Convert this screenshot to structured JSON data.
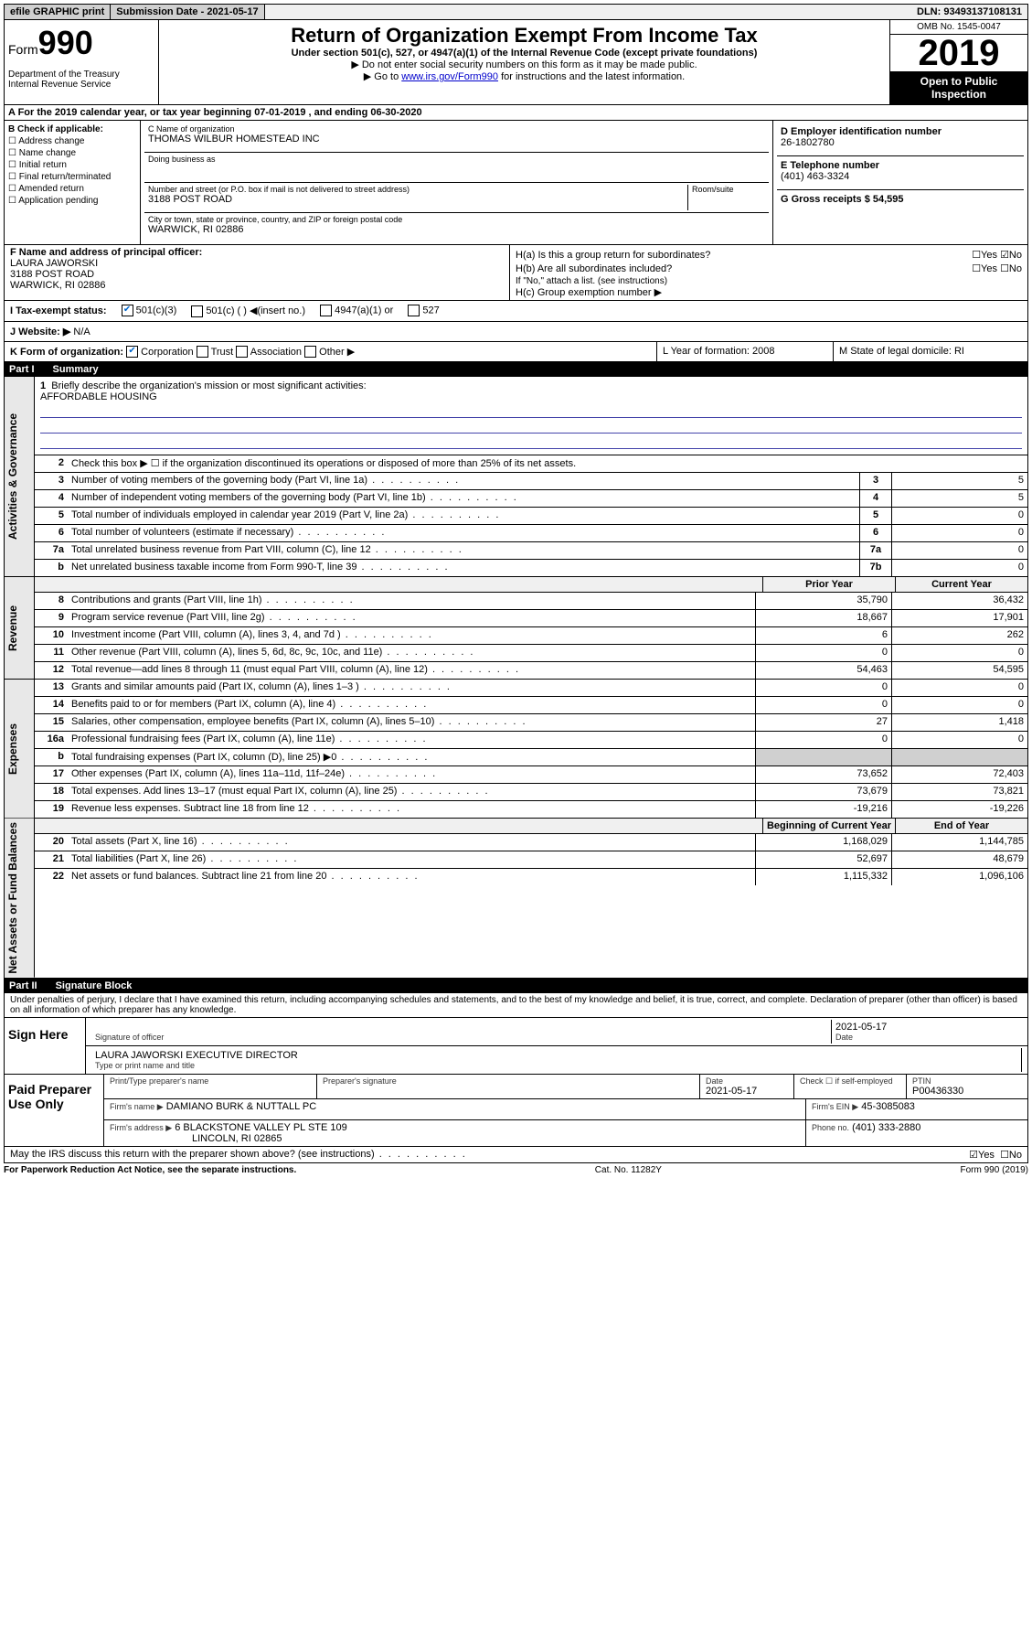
{
  "top": {
    "efile": "efile GRAPHIC print",
    "submission_label": "Submission Date - 2021-05-17",
    "dln": "DLN: 93493137108131"
  },
  "header": {
    "form_word": "Form",
    "form_num": "990",
    "dept": "Department of the Treasury\nInternal Revenue Service",
    "title": "Return of Organization Exempt From Income Tax",
    "subtitle": "Under section 501(c), 527, or 4947(a)(1) of the Internal Revenue Code (except private foundations)",
    "instr1": "▶ Do not enter social security numbers on this form as it may be made public.",
    "instr2_pre": "▶ Go to ",
    "instr2_link": "www.irs.gov/Form990",
    "instr2_post": " for instructions and the latest information.",
    "omb": "OMB No. 1545-0047",
    "year": "2019",
    "open": "Open to Public Inspection"
  },
  "periodA": "A For the 2019 calendar year, or tax year beginning 07-01-2019   , and ending 06-30-2020",
  "sectionB": {
    "label": "B Check if applicable:",
    "opts": [
      "☐ Address change",
      "☐ Name change",
      "☐ Initial return",
      "☐ Final return/terminated",
      "☐ Amended return",
      "☐ Application pending"
    ]
  },
  "sectionC": {
    "name_label": "C Name of organization",
    "name": "THOMAS WILBUR HOMESTEAD INC",
    "dba_label": "Doing business as",
    "dba": "",
    "addr_label": "Number and street (or P.O. box if mail is not delivered to street address)",
    "addr": "3188 POST ROAD",
    "room_label": "Room/suite",
    "city_label": "City or town, state or province, country, and ZIP or foreign postal code",
    "city": "WARWICK, RI  02886"
  },
  "sectionD": {
    "label": "D Employer identification number",
    "ein": "26-1802780"
  },
  "sectionE": {
    "label": "E Telephone number",
    "phone": "(401) 463-3324"
  },
  "sectionG": {
    "label": "G Gross receipts $ 54,595"
  },
  "sectionF": {
    "label": "F  Name and address of principal officer:",
    "name": "LAURA JAWORSKI",
    "addr1": "3188 POST ROAD",
    "addr2": "WARWICK, RI  02886"
  },
  "sectionH": {
    "ha_label": "H(a)  Is this a group return for subordinates?",
    "ha_yes": "☐Yes",
    "ha_no": "☑No",
    "hb_label": "H(b)  Are all subordinates included?",
    "hb_yes": "☐Yes",
    "hb_no": "☐No",
    "hb_note": "If \"No,\" attach a list. (see instructions)",
    "hc_label": "H(c)  Group exemption number ▶"
  },
  "sectionI": {
    "label": "I   Tax-exempt status:",
    "o1": "501(c)(3)",
    "o2": "501(c) (  ) ◀(insert no.)",
    "o3": "4947(a)(1) or",
    "o4": "527"
  },
  "sectionJ": {
    "label": "J   Website: ▶",
    "val": "N/A"
  },
  "sectionK": {
    "label": "K Form of organization:",
    "o1": "Corporation",
    "o2": "Trust",
    "o3": "Association",
    "o4": "Other ▶"
  },
  "sectionL": {
    "label": "L Year of formation: 2008"
  },
  "sectionM": {
    "label": "M State of legal domicile: RI"
  },
  "part1": {
    "header_num": "Part I",
    "header_title": "Summary",
    "vert_gov": "Activities & Governance",
    "vert_rev": "Revenue",
    "vert_exp": "Expenses",
    "vert_net": "Net Assets or Fund Balances",
    "line1_label": "Briefly describe the organization's mission or most significant activities:",
    "line1_val": "AFFORDABLE HOUSING",
    "line2": "Check this box ▶ ☐  if the organization discontinued its operations or disposed of more than 25% of its net assets.",
    "lines_gov": [
      {
        "n": "3",
        "d": "Number of voting members of the governing body (Part VI, line 1a)",
        "b": "3",
        "v": "5"
      },
      {
        "n": "4",
        "d": "Number of independent voting members of the governing body (Part VI, line 1b)",
        "b": "4",
        "v": "5"
      },
      {
        "n": "5",
        "d": "Total number of individuals employed in calendar year 2019 (Part V, line 2a)",
        "b": "5",
        "v": "0"
      },
      {
        "n": "6",
        "d": "Total number of volunteers (estimate if necessary)",
        "b": "6",
        "v": "0"
      },
      {
        "n": "7a",
        "d": "Total unrelated business revenue from Part VIII, column (C), line 12",
        "b": "7a",
        "v": "0"
      },
      {
        "n": "b",
        "d": "Net unrelated business taxable income from Form 990-T, line 39",
        "b": "7b",
        "v": "0"
      }
    ],
    "col_prior": "Prior Year",
    "col_current": "Current Year",
    "lines_rev": [
      {
        "n": "8",
        "d": "Contributions and grants (Part VIII, line 1h)",
        "p": "35,790",
        "c": "36,432"
      },
      {
        "n": "9",
        "d": "Program service revenue (Part VIII, line 2g)",
        "p": "18,667",
        "c": "17,901"
      },
      {
        "n": "10",
        "d": "Investment income (Part VIII, column (A), lines 3, 4, and 7d )",
        "p": "6",
        "c": "262"
      },
      {
        "n": "11",
        "d": "Other revenue (Part VIII, column (A), lines 5, 6d, 8c, 9c, 10c, and 11e)",
        "p": "0",
        "c": "0"
      },
      {
        "n": "12",
        "d": "Total revenue—add lines 8 through 11 (must equal Part VIII, column (A), line 12)",
        "p": "54,463",
        "c": "54,595"
      }
    ],
    "lines_exp": [
      {
        "n": "13",
        "d": "Grants and similar amounts paid (Part IX, column (A), lines 1–3 )",
        "p": "0",
        "c": "0"
      },
      {
        "n": "14",
        "d": "Benefits paid to or for members (Part IX, column (A), line 4)",
        "p": "0",
        "c": "0"
      },
      {
        "n": "15",
        "d": "Salaries, other compensation, employee benefits (Part IX, column (A), lines 5–10)",
        "p": "27",
        "c": "1,418"
      },
      {
        "n": "16a",
        "d": "Professional fundraising fees (Part IX, column (A), line 11e)",
        "p": "0",
        "c": "0"
      },
      {
        "n": "b",
        "d": "Total fundraising expenses (Part IX, column (D), line 25) ▶0",
        "p": "",
        "c": ""
      },
      {
        "n": "17",
        "d": "Other expenses (Part IX, column (A), lines 11a–11d, 11f–24e)",
        "p": "73,652",
        "c": "72,403"
      },
      {
        "n": "18",
        "d": "Total expenses. Add lines 13–17 (must equal Part IX, column (A), line 25)",
        "p": "73,679",
        "c": "73,821"
      },
      {
        "n": "19",
        "d": "Revenue less expenses. Subtract line 18 from line 12",
        "p": "-19,216",
        "c": "-19,226"
      }
    ],
    "col_begin": "Beginning of Current Year",
    "col_end": "End of Year",
    "lines_net": [
      {
        "n": "20",
        "d": "Total assets (Part X, line 16)",
        "p": "1,168,029",
        "c": "1,144,785"
      },
      {
        "n": "21",
        "d": "Total liabilities (Part X, line 26)",
        "p": "52,697",
        "c": "48,679"
      },
      {
        "n": "22",
        "d": "Net assets or fund balances. Subtract line 21 from line 20",
        "p": "1,115,332",
        "c": "1,096,106"
      }
    ]
  },
  "part2": {
    "header_num": "Part II",
    "header_title": "Signature Block",
    "declare": "Under penalties of perjury, I declare that I have examined this return, including accompanying schedules and statements, and to the best of my knowledge and belief, it is true, correct, and complete. Declaration of preparer (other than officer) is based on all information of which preparer has any knowledge.",
    "sign_here": "Sign Here",
    "sig_officer_label": "Signature of officer",
    "sig_date": "2021-05-17",
    "sig_date_label": "Date",
    "officer_name": "LAURA JAWORSKI  EXECUTIVE DIRECTOR",
    "officer_name_label": "Type or print name and title",
    "paid_label": "Paid Preparer Use Only",
    "prep_name_label": "Print/Type preparer's name",
    "prep_sig_label": "Preparer's signature",
    "prep_date_label": "Date",
    "prep_date": "2021-05-17",
    "prep_check_label": "Check ☐ if self-employed",
    "ptin_label": "PTIN",
    "ptin": "P00436330",
    "firm_name_label": "Firm's name    ▶",
    "firm_name": "DAMIANO BURK & NUTTALL PC",
    "firm_ein_label": "Firm's EIN ▶",
    "firm_ein": "45-3085083",
    "firm_addr_label": "Firm's address ▶",
    "firm_addr1": "6 BLACKSTONE VALLEY PL STE 109",
    "firm_addr2": "LINCOLN, RI  02865",
    "firm_phone_label": "Phone no.",
    "firm_phone": "(401) 333-2880",
    "discuss": "May the IRS discuss this return with the preparer shown above? (see instructions)",
    "discuss_yes": "☑Yes",
    "discuss_no": "☐No"
  },
  "footer": {
    "paperwork": "For Paperwork Reduction Act Notice, see the separate instructions.",
    "cat": "Cat. No. 11282Y",
    "form": "Form 990 (2019)"
  }
}
